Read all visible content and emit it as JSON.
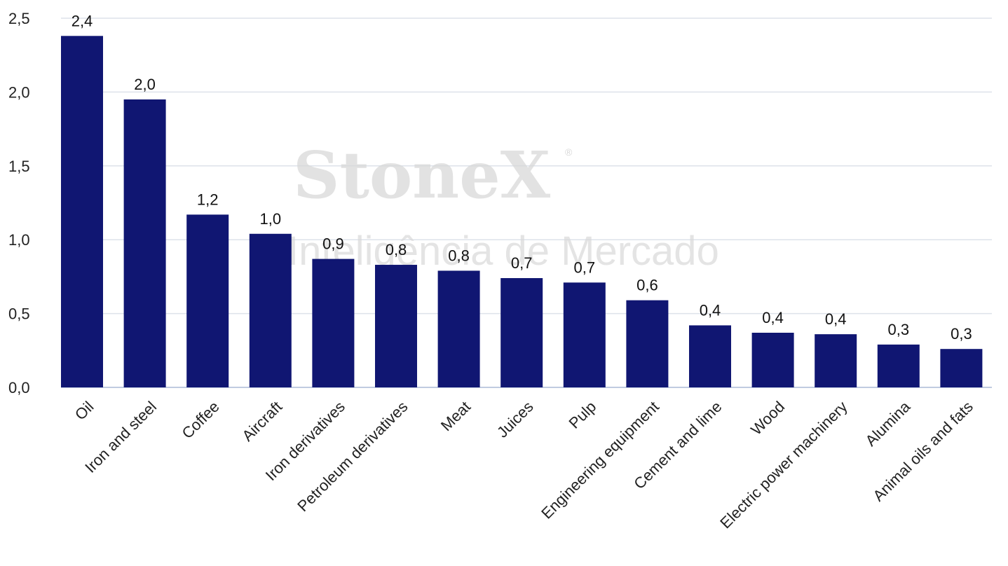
{
  "watermark": {
    "brand": "StoneX",
    "registered": "®",
    "tagline": "Inteligência de Mercado"
  },
  "chart_data": {
    "type": "bar",
    "categories": [
      "Oil",
      "Iron and steel",
      "Coffee",
      "Aircraft",
      "Iron derivatives",
      "Petroleum derivatives",
      "Meat",
      "Juices",
      "Pulp",
      "Engineering equipment",
      "Cement and lime",
      "Wood",
      "Electric power machinery",
      "Alumina",
      "Animal oils and fats"
    ],
    "values": [
      2.38,
      1.95,
      1.17,
      1.04,
      0.87,
      0.83,
      0.79,
      0.74,
      0.71,
      0.59,
      0.42,
      0.37,
      0.36,
      0.29,
      0.26
    ],
    "data_labels": [
      "2,4",
      "2,0",
      "1,2",
      "1,0",
      "0,9",
      "0,8",
      "0,8",
      "0,7",
      "0,7",
      "0,6",
      "0,4",
      "0,4",
      "0,4",
      "0,3",
      "0,3"
    ],
    "yticks": [
      "0,0",
      "0,5",
      "1,0",
      "1,5",
      "2,0",
      "2,5"
    ],
    "ylim": [
      0,
      2.5
    ],
    "grid": true,
    "bar_color": "#101672",
    "grid_color": "#dde2ea",
    "axis_color": "#c0cbe0",
    "title": "",
    "xlabel": "",
    "ylabel": ""
  }
}
